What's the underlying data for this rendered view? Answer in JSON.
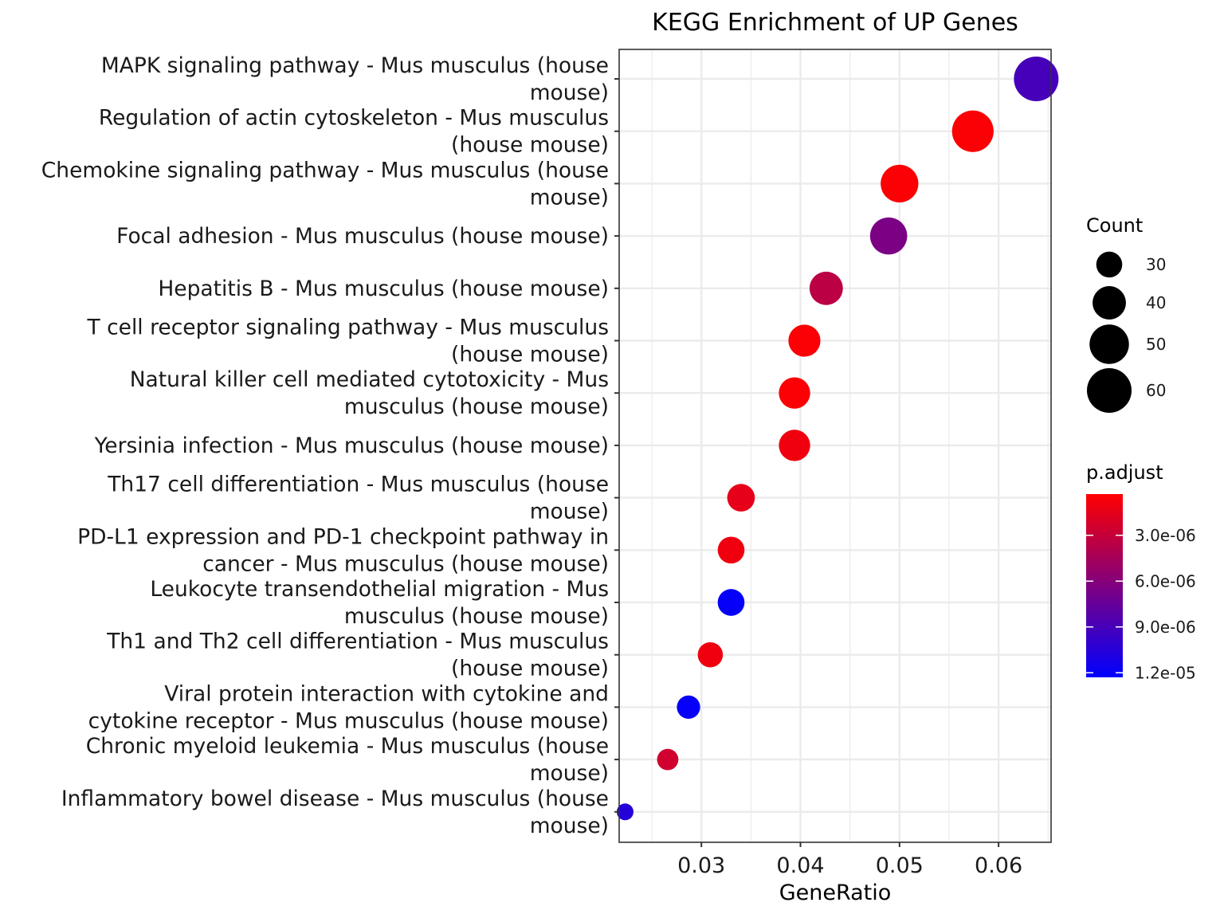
{
  "chart_data": {
    "type": "scatter",
    "title": "KEGG Enrichment of UP Genes",
    "xlabel": "GeneRatio",
    "ylabel": "",
    "xlim": [
      0.0217,
      0.0653
    ],
    "xticks": [
      0.03,
      0.04,
      0.05,
      0.06
    ],
    "xtick_labels": [
      "0.03",
      "0.04",
      "0.05",
      "0.06"
    ],
    "grid": true,
    "categories": [
      "MAPK signaling pathway - Mus musculus (house mouse)",
      "Regulation of actin cytoskeleton - Mus musculus (house mouse)",
      "Chemokine signaling pathway - Mus musculus (house mouse)",
      "Focal adhesion - Mus musculus (house mouse)",
      "Hepatitis B - Mus musculus (house mouse)",
      "T cell receptor signaling pathway - Mus musculus (house mouse)",
      "Natural killer cell mediated cytotoxicity - Mus musculus (house mouse)",
      "Yersinia infection - Mus musculus (house mouse)",
      "Th17 cell differentiation - Mus musculus (house mouse)",
      "PD-L1 expression and PD-1 checkpoint pathway in cancer - Mus musculus (house mouse)",
      "Leukocyte transendothelial migration - Mus musculus (house mouse)",
      "Th1 and Th2 cell differentiation - Mus musculus (house mouse)",
      "Viral protein interaction with cytokine and cytokine receptor - Mus musculus (house mouse)",
      "Chronic myeloid leukemia - Mus musculus (house mouse)",
      "Inflammatory bowel disease - Mus musculus (house mouse)"
    ],
    "category_label_lines": [
      [
        "MAPK signaling pathway - Mus musculus (house",
        "mouse)"
      ],
      [
        "Regulation of actin cytoskeleton - Mus musculus",
        "(house mouse)"
      ],
      [
        "Chemokine signaling pathway - Mus musculus (house",
        "mouse)"
      ],
      [
        "Focal adhesion - Mus musculus (house mouse)"
      ],
      [
        "Hepatitis B - Mus musculus (house mouse)"
      ],
      [
        "T cell receptor signaling pathway - Mus musculus",
        "(house mouse)"
      ],
      [
        "Natural killer cell mediated cytotoxicity - Mus",
        "musculus (house mouse)"
      ],
      [
        "Yersinia infection - Mus musculus (house mouse)"
      ],
      [
        "Th17 cell differentiation - Mus musculus (house",
        "mouse)"
      ],
      [
        "PD-L1 expression and PD-1 checkpoint pathway in",
        "cancer - Mus musculus (house mouse)"
      ],
      [
        "Leukocyte transendothelial migration - Mus",
        "musculus (house mouse)"
      ],
      [
        "Th1 and Th2 cell differentiation - Mus musculus",
        "(house mouse)"
      ],
      [
        "Viral protein interaction with cytokine and",
        "cytokine receptor - Mus musculus (house mouse)"
      ],
      [
        "Chronic myeloid leukemia - Mus musculus (house",
        "mouse)"
      ],
      [
        "Inflammatory bowel disease - Mus musculus (house",
        "mouse)"
      ]
    ],
    "series": [
      {
        "gene_ratio": [
          0.0638,
          0.0574,
          0.05,
          0.0489,
          0.0426,
          0.0404,
          0.0394,
          0.0394,
          0.034,
          0.033,
          0.033,
          0.0309,
          0.0287,
          0.0266,
          0.0223
        ],
        "count": [
          60,
          54,
          47,
          46,
          40,
          38,
          37,
          37,
          32,
          31,
          31,
          29,
          27,
          25,
          21
        ],
        "p_adjust": [
          9e-06,
          5e-07,
          5e-07,
          6.5e-06,
          3.5e-06,
          5e-07,
          5e-07,
          1e-06,
          1.5e-06,
          1e-06,
          1.2e-05,
          1e-06,
          1.2e-05,
          2.5e-06,
          1.05e-05
        ]
      }
    ],
    "legend": {
      "position": "right",
      "size": {
        "title": "Count",
        "values": [
          30,
          40,
          50,
          60
        ],
        "labels": [
          "30",
          "40",
          "50",
          "60"
        ]
      },
      "color": {
        "title": "p.adjust",
        "low_color": "#ff0000",
        "high_color": "#0000ff",
        "range": [
          3e-07,
          1.23e-05
        ],
        "ticks": [
          3e-06,
          6e-06,
          9e-06,
          1.2e-05
        ],
        "tick_labels": [
          "3.0e-06",
          "6.0e-06",
          "9.0e-06",
          "1.2e-05"
        ]
      }
    }
  }
}
